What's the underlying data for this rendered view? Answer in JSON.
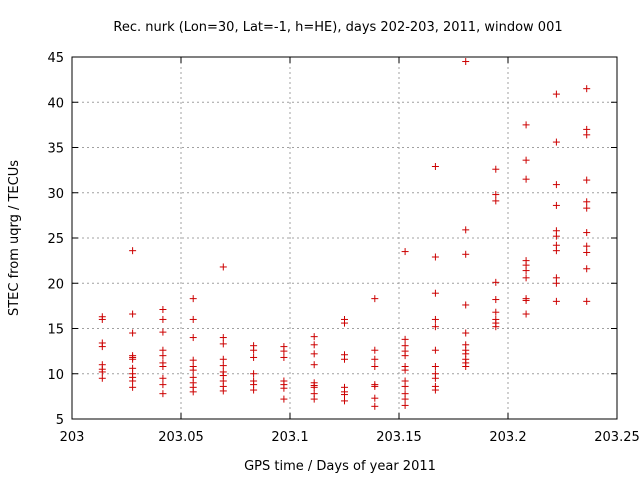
{
  "chart_data": {
    "type": "scatter",
    "title": "Rec. nurk (Lon=30, Lat=-1, h=HE), days 202-203, 2011, window 001",
    "xlabel": "GPS time / Days of year 2011",
    "ylabel": "STEC from uqrg / TECUs",
    "xlim": [
      203,
      203.25
    ],
    "ylim": [
      5,
      45
    ],
    "xticks": [
      "203",
      "203.05",
      "203.1",
      "203.15",
      "203.2",
      "203.25"
    ],
    "yticks": [
      "5",
      "10",
      "15",
      "20",
      "25",
      "30",
      "35",
      "40",
      "45"
    ],
    "grid": true,
    "marker": "+",
    "color": "#cc0000",
    "points": [
      [
        203.0139,
        16.3
      ],
      [
        203.0139,
        16.0
      ],
      [
        203.0139,
        13.4
      ],
      [
        203.0139,
        13.0
      ],
      [
        203.0139,
        11.0
      ],
      [
        203.0139,
        10.5
      ],
      [
        203.0139,
        10.2
      ],
      [
        203.0139,
        9.5
      ],
      [
        203.0278,
        23.6
      ],
      [
        203.0278,
        16.6
      ],
      [
        203.0278,
        14.5
      ],
      [
        203.0278,
        12.0
      ],
      [
        203.0278,
        11.8
      ],
      [
        203.0278,
        11.6
      ],
      [
        203.0278,
        10.6
      ],
      [
        203.0278,
        10.0
      ],
      [
        203.0278,
        9.6
      ],
      [
        203.0278,
        9.2
      ],
      [
        203.0278,
        8.5
      ],
      [
        203.0417,
        17.1
      ],
      [
        203.0417,
        16.0
      ],
      [
        203.0417,
        14.6
      ],
      [
        203.0417,
        12.6
      ],
      [
        203.0417,
        12.0
      ],
      [
        203.0417,
        11.2
      ],
      [
        203.0417,
        10.8
      ],
      [
        203.0417,
        9.5
      ],
      [
        203.0417,
        8.8
      ],
      [
        203.0417,
        7.8
      ],
      [
        203.0556,
        18.3
      ],
      [
        203.0556,
        16.0
      ],
      [
        203.0556,
        14.0
      ],
      [
        203.0556,
        11.5
      ],
      [
        203.0556,
        10.8
      ],
      [
        203.0556,
        10.4
      ],
      [
        203.0556,
        9.6
      ],
      [
        203.0556,
        9.0
      ],
      [
        203.0556,
        8.5
      ],
      [
        203.0556,
        8.0
      ],
      [
        203.0694,
        21.8
      ],
      [
        203.0694,
        14.0
      ],
      [
        203.0694,
        13.3
      ],
      [
        203.0694,
        11.6
      ],
      [
        203.0694,
        10.9
      ],
      [
        203.0694,
        10.2
      ],
      [
        203.0694,
        9.8
      ],
      [
        203.0694,
        9.2
      ],
      [
        203.0694,
        8.6
      ],
      [
        203.0694,
        8.1
      ],
      [
        203.0833,
        13.1
      ],
      [
        203.0833,
        12.6
      ],
      [
        203.0833,
        11.8
      ],
      [
        203.0833,
        10.0
      ],
      [
        203.0833,
        9.2
      ],
      [
        203.0833,
        8.8
      ],
      [
        203.0833,
        8.2
      ],
      [
        203.0972,
        13.0
      ],
      [
        203.0972,
        12.5
      ],
      [
        203.0972,
        11.8
      ],
      [
        203.0972,
        9.2
      ],
      [
        203.0972,
        8.8
      ],
      [
        203.0972,
        8.4
      ],
      [
        203.0972,
        7.2
      ],
      [
        203.1111,
        14.1
      ],
      [
        203.1111,
        13.2
      ],
      [
        203.1111,
        12.2
      ],
      [
        203.1111,
        11.0
      ],
      [
        203.1111,
        9.0
      ],
      [
        203.1111,
        8.7
      ],
      [
        203.1111,
        8.5
      ],
      [
        203.1111,
        7.8
      ],
      [
        203.1111,
        7.2
      ],
      [
        203.125,
        16.0
      ],
      [
        203.125,
        15.6
      ],
      [
        203.125,
        12.1
      ],
      [
        203.125,
        11.6
      ],
      [
        203.125,
        8.5
      ],
      [
        203.125,
        8.0
      ],
      [
        203.125,
        7.7
      ],
      [
        203.125,
        7.0
      ],
      [
        203.1389,
        18.3
      ],
      [
        203.1389,
        12.6
      ],
      [
        203.1389,
        11.6
      ],
      [
        203.1389,
        10.8
      ],
      [
        203.1389,
        8.8
      ],
      [
        203.1389,
        8.6
      ],
      [
        203.1389,
        7.3
      ],
      [
        203.1389,
        6.4
      ],
      [
        203.1528,
        23.5
      ],
      [
        203.1528,
        13.8
      ],
      [
        203.1528,
        13.1
      ],
      [
        203.1528,
        12.5
      ],
      [
        203.1528,
        12.0
      ],
      [
        203.1528,
        10.8
      ],
      [
        203.1528,
        10.4
      ],
      [
        203.1528,
        9.2
      ],
      [
        203.1528,
        8.6
      ],
      [
        203.1528,
        7.8
      ],
      [
        203.1528,
        7.2
      ],
      [
        203.1528,
        6.5
      ],
      [
        203.1667,
        32.9
      ],
      [
        203.1667,
        22.9
      ],
      [
        203.1667,
        18.9
      ],
      [
        203.1667,
        16.0
      ],
      [
        203.1667,
        15.2
      ],
      [
        203.1667,
        12.6
      ],
      [
        203.1667,
        10.8
      ],
      [
        203.1667,
        10.0
      ],
      [
        203.1667,
        9.5
      ],
      [
        203.1667,
        8.6
      ],
      [
        203.1667,
        8.2
      ],
      [
        203.1806,
        44.5
      ],
      [
        203.1806,
        25.9
      ],
      [
        203.1806,
        23.2
      ],
      [
        203.1806,
        17.6
      ],
      [
        203.1806,
        14.5
      ],
      [
        203.1806,
        13.2
      ],
      [
        203.1806,
        12.6
      ],
      [
        203.1806,
        12.2
      ],
      [
        203.1806,
        11.6
      ],
      [
        203.1806,
        11.2
      ],
      [
        203.1806,
        10.8
      ],
      [
        203.1944,
        32.6
      ],
      [
        203.1944,
        29.8
      ],
      [
        203.1944,
        29.1
      ],
      [
        203.1944,
        20.1
      ],
      [
        203.1944,
        18.2
      ],
      [
        203.1944,
        16.8
      ],
      [
        203.1944,
        16.0
      ],
      [
        203.1944,
        15.6
      ],
      [
        203.1944,
        15.2
      ],
      [
        203.2083,
        37.5
      ],
      [
        203.2083,
        33.6
      ],
      [
        203.2083,
        31.5
      ],
      [
        203.2083,
        22.5
      ],
      [
        203.2083,
        22.0
      ],
      [
        203.2083,
        21.4
      ],
      [
        203.2083,
        20.6
      ],
      [
        203.2083,
        18.3
      ],
      [
        203.2083,
        18.1
      ],
      [
        203.2083,
        16.6
      ],
      [
        203.2222,
        40.9
      ],
      [
        203.2222,
        35.6
      ],
      [
        203.2222,
        30.9
      ],
      [
        203.2222,
        28.6
      ],
      [
        203.2222,
        25.8
      ],
      [
        203.2222,
        25.2
      ],
      [
        203.2222,
        24.2
      ],
      [
        203.2222,
        23.6
      ],
      [
        203.2222,
        20.6
      ],
      [
        203.2222,
        20.0
      ],
      [
        203.2222,
        18.0
      ],
      [
        203.2361,
        41.5
      ],
      [
        203.2361,
        37.0
      ],
      [
        203.2361,
        36.4
      ],
      [
        203.2361,
        31.4
      ],
      [
        203.2361,
        29.0
      ],
      [
        203.2361,
        28.3
      ],
      [
        203.2361,
        25.6
      ],
      [
        203.2361,
        24.1
      ],
      [
        203.2361,
        23.4
      ],
      [
        203.2361,
        21.6
      ],
      [
        203.2361,
        18.0
      ]
    ]
  }
}
